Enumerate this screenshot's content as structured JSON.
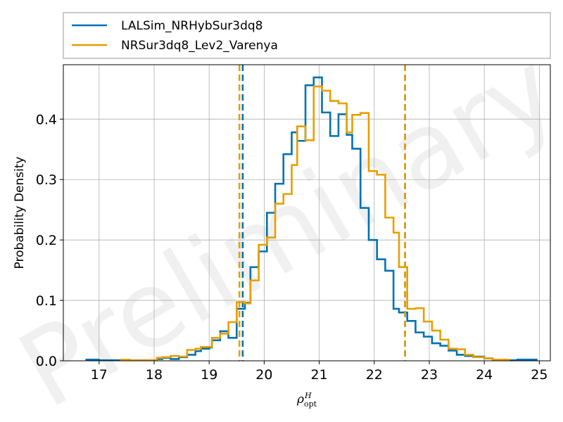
{
  "chart_data": {
    "type": "histogram",
    "xlabel": {
      "base": "ρ",
      "subscript": "opt",
      "superscript": "H"
    },
    "ylabel": "Probability Density",
    "xlim": [
      16.35,
      25.2
    ],
    "ylim": [
      0,
      0.49
    ],
    "xticks": [
      17,
      18,
      19,
      20,
      21,
      22,
      23,
      24,
      25
    ],
    "yticks": [
      0.0,
      0.1,
      0.2,
      0.3,
      0.4
    ],
    "ytick_labels": [
      "0.0",
      "0.1",
      "0.2",
      "0.3",
      "0.4"
    ],
    "grid": true,
    "legend_placement": "top, above plot",
    "watermark": "Preliminary",
    "series": [
      {
        "name": "LALSim_NRHybSur3dq8",
        "color": "#0072b2",
        "x": [
          16.77,
          17.0,
          17.4,
          17.6,
          17.8,
          18.0,
          18.05,
          18.15,
          18.3,
          18.45,
          18.6,
          18.75,
          18.85,
          19.0,
          19.05,
          19.2,
          19.35,
          19.5,
          19.65,
          19.75,
          19.9,
          20.05,
          20.2,
          20.35,
          20.5,
          20.6,
          20.75,
          20.9,
          21.05,
          21.2,
          21.35,
          21.5,
          21.6,
          21.75,
          21.9,
          22.05,
          22.2,
          22.35,
          22.45,
          22.6,
          22.75,
          22.9,
          23.05,
          23.2,
          23.35,
          23.5,
          23.65,
          23.8,
          24.0,
          24.15,
          24.3,
          24.6,
          24.8
        ],
        "values": [
          0.002,
          0.001,
          0.001,
          0.001,
          0.001,
          0.001,
          0.003,
          0.005,
          0.003,
          0.006,
          0.01,
          0.016,
          0.02,
          0.022,
          0.034,
          0.049,
          0.038,
          0.086,
          0.096,
          0.155,
          0.181,
          0.245,
          0.293,
          0.342,
          0.378,
          0.364,
          0.456,
          0.469,
          0.411,
          0.372,
          0.408,
          0.374,
          0.351,
          0.253,
          0.2,
          0.168,
          0.149,
          0.086,
          0.08,
          0.066,
          0.047,
          0.04,
          0.029,
          0.025,
          0.017,
          0.01,
          0.008,
          0.007,
          0.004,
          0.001,
          0.001,
          0.002,
          0.002
        ],
        "dashed_lines": [
          19.61,
          22.56
        ]
      },
      {
        "name": "NRSur3dq8_Lev2_Varenya",
        "color": "#e69f00",
        "x": [
          17.4,
          17.55,
          17.7,
          17.85,
          18.0,
          18.05,
          18.15,
          18.3,
          18.45,
          18.6,
          18.75,
          18.85,
          19.0,
          19.05,
          19.2,
          19.35,
          19.5,
          19.65,
          19.75,
          19.9,
          20.05,
          20.2,
          20.35,
          20.5,
          20.6,
          20.75,
          20.9,
          21.05,
          21.2,
          21.35,
          21.5,
          21.6,
          21.75,
          21.9,
          22.05,
          22.2,
          22.35,
          22.45,
          22.6,
          22.75,
          22.9,
          23.05,
          23.2,
          23.35,
          23.5,
          23.65,
          23.8,
          24.0,
          24.15,
          24.3
        ],
        "values": [
          0.002,
          0.001,
          0.001,
          0.001,
          0.001,
          0.005,
          0.006,
          0.008,
          0.007,
          0.018,
          0.02,
          0.023,
          0.023,
          0.038,
          0.045,
          0.064,
          0.097,
          0.095,
          0.133,
          0.192,
          0.204,
          0.26,
          0.276,
          0.324,
          0.388,
          0.365,
          0.454,
          0.447,
          0.43,
          0.426,
          0.378,
          0.407,
          0.41,
          0.314,
          0.308,
          0.237,
          0.212,
          0.155,
          0.086,
          0.087,
          0.065,
          0.05,
          0.035,
          0.02,
          0.019,
          0.01,
          0.006,
          0.004,
          0.002,
          0.002
        ],
        "dashed_lines": [
          19.55,
          22.56
        ]
      }
    ]
  }
}
